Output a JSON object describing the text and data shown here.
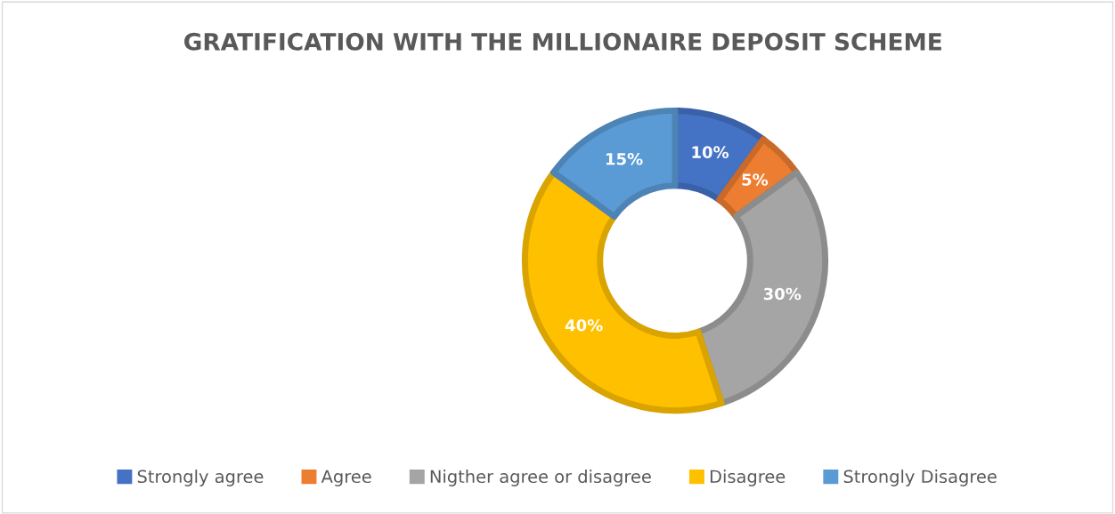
{
  "chart_data": {
    "type": "donut",
    "title": "GRATIFICATION WITH THE MILLIONAIRE DEPOSIT SCHEME",
    "categories": [
      "Strongly agree",
      "Agree",
      "Nigther agree or disagree",
      "Disagree",
      "Strongly Disagree"
    ],
    "values": [
      10,
      5,
      30,
      40,
      15
    ],
    "colors": [
      "#4472c4",
      "#ed7d31",
      "#a5a5a5",
      "#ffc000",
      "#5b9bd5"
    ],
    "value_labels": [
      "10%",
      "5%",
      "30%",
      "40%",
      "15%"
    ],
    "legend": "bottom"
  }
}
